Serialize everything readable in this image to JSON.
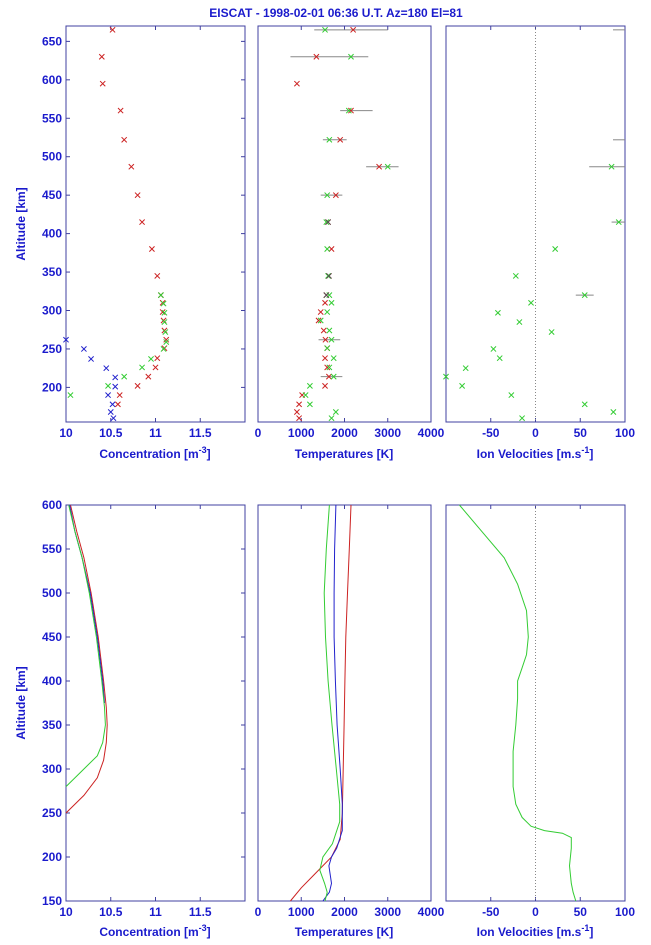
{
  "figure": {
    "title": "EISCAT  - 1998-02-01 06:36 U.T.  Az=180 El=81",
    "colors": {
      "frame": "#4040a0",
      "text": "#1a1acc",
      "red": "#cc2222",
      "green": "#33cc33",
      "blue": "#2222cc",
      "dark": "#555555",
      "grid": "#888888"
    }
  },
  "chart_data": [
    {
      "type": "scatter",
      "title": "",
      "xlabel": "Concentration [m^-3]",
      "ylabel": "Altitude [km]",
      "xlim": [
        10,
        12
      ],
      "ylim": [
        155,
        670
      ],
      "xticks": [
        "10",
        "10.5",
        "11",
        "11.5"
      ],
      "yticks": [
        "200",
        "250",
        "300",
        "350",
        "400",
        "450",
        "500",
        "550",
        "600",
        "650"
      ],
      "series": [
        {
          "color": "red",
          "points": [
            [
              10.52,
              665
            ],
            [
              10.4,
              630
            ],
            [
              10.41,
              595
            ],
            [
              10.61,
              560
            ],
            [
              10.65,
              522
            ],
            [
              10.73,
              487
            ],
            [
              10.8,
              450
            ],
            [
              10.85,
              415
            ],
            [
              10.96,
              380
            ],
            [
              11.02,
              345
            ],
            [
              11.06,
              320
            ],
            [
              11.08,
              310
            ],
            [
              11.08,
              298
            ],
            [
              11.09,
              287
            ],
            [
              11.1,
              274
            ],
            [
              11.12,
              262
            ],
            [
              11.1,
              251
            ],
            [
              11.02,
              238
            ],
            [
              11.0,
              226
            ],
            [
              10.92,
              214
            ],
            [
              10.8,
              202
            ],
            [
              10.6,
              190
            ],
            [
              10.58,
              178
            ]
          ]
        },
        {
          "color": "green",
          "points": [
            [
              11.06,
              320
            ],
            [
              11.09,
              309
            ],
            [
              11.1,
              297
            ],
            [
              11.1,
              285
            ],
            [
              11.11,
              272
            ],
            [
              11.12,
              259
            ],
            [
              11.09,
              250
            ],
            [
              10.95,
              237
            ],
            [
              10.85,
              226
            ],
            [
              10.65,
              214
            ],
            [
              10.47,
              202
            ],
            [
              10.05,
              190
            ]
          ]
        },
        {
          "color": "blue",
          "points": [
            [
              10.0,
              262
            ],
            [
              10.2,
              250
            ],
            [
              10.28,
              237
            ],
            [
              10.45,
              225
            ],
            [
              10.55,
              213
            ],
            [
              10.55,
              201
            ],
            [
              10.47,
              190
            ],
            [
              10.52,
              178
            ],
            [
              10.5,
              168
            ],
            [
              10.53,
              160
            ]
          ]
        }
      ]
    },
    {
      "type": "scatter",
      "title": "",
      "xlabel": "Temperatures [K]",
      "ylabel": "",
      "xlim": [
        0,
        4000
      ],
      "ylim": [
        155,
        670
      ],
      "xticks": [
        "0",
        "1000",
        "2000",
        "3000",
        "4000"
      ],
      "yticks": [],
      "series": [
        {
          "color": "red",
          "points": [
            [
              2200,
              665
            ],
            [
              1350,
              630
            ],
            [
              900,
              595
            ],
            [
              2150,
              560
            ],
            [
              1900,
              522
            ],
            [
              2800,
              487
            ],
            [
              1800,
              450
            ],
            [
              1620,
              415
            ],
            [
              1700,
              380
            ],
            [
              1640,
              345
            ],
            [
              1580,
              320
            ],
            [
              1550,
              310
            ],
            [
              1450,
              298
            ],
            [
              1400,
              287
            ],
            [
              1520,
              274
            ],
            [
              1560,
              262
            ],
            [
              1600,
              251
            ],
            [
              1550,
              238
            ],
            [
              1600,
              226
            ],
            [
              1640,
              214
            ],
            [
              1550,
              202
            ],
            [
              1020,
              190
            ],
            [
              950,
              178
            ],
            [
              900,
              168
            ],
            [
              950,
              160
            ]
          ]
        },
        {
          "color": "green",
          "points": [
            [
              1550,
              665
            ],
            [
              2150,
              630
            ],
            [
              2100,
              560
            ],
            [
              1650,
              522
            ],
            [
              3000,
              487
            ],
            [
              1600,
              450
            ],
            [
              1580,
              415
            ],
            [
              1600,
              380
            ],
            [
              1620,
              345
            ],
            [
              1650,
              320
            ],
            [
              1700,
              310
            ],
            [
              1600,
              298
            ],
            [
              1450,
              287
            ],
            [
              1650,
              274
            ],
            [
              1700,
              262
            ],
            [
              1600,
              251
            ],
            [
              1750,
              238
            ],
            [
              1650,
              226
            ],
            [
              1750,
              214
            ],
            [
              1200,
              202
            ],
            [
              1100,
              190
            ],
            [
              1200,
              178
            ],
            [
              1800,
              168
            ],
            [
              1700,
              160
            ]
          ]
        },
        {
          "color": "dark",
          "points": [
            [
              1620,
              415
            ],
            [
              1640,
              345
            ],
            [
              1580,
              320
            ]
          ]
        }
      ],
      "errorbars": [
        {
          "y": 665,
          "x0": 1300,
          "x1": 3000
        },
        {
          "y": 630,
          "x0": 750,
          "x1": 2550
        },
        {
          "y": 560,
          "x0": 1900,
          "x1": 2650
        },
        {
          "y": 522,
          "x0": 1500,
          "x1": 2050
        },
        {
          "y": 487,
          "x0": 2500,
          "x1": 3250
        },
        {
          "y": 450,
          "x0": 1450,
          "x1": 1950
        },
        {
          "y": 262,
          "x0": 1400,
          "x1": 1900
        },
        {
          "y": 214,
          "x0": 1450,
          "x1": 1950
        }
      ]
    },
    {
      "type": "scatter",
      "title": "",
      "xlabel": "Ion Velocities [m.s^-1]",
      "ylabel": "",
      "xlim": [
        -100,
        100
      ],
      "ylim": [
        155,
        670
      ],
      "xticks": [
        "-50",
        "0",
        "50",
        "100"
      ],
      "yticks": [],
      "series": [
        {
          "color": "green",
          "points": [
            [
              85,
              487
            ],
            [
              93,
              415
            ],
            [
              22,
              380
            ],
            [
              -22,
              345
            ],
            [
              55,
              320
            ],
            [
              -5,
              310
            ],
            [
              -42,
              297
            ],
            [
              -18,
              285
            ],
            [
              18,
              272
            ],
            [
              -47,
              250
            ],
            [
              -40,
              238
            ],
            [
              -78,
              225
            ],
            [
              -100,
              214
            ],
            [
              -82,
              202
            ],
            [
              -27,
              190
            ],
            [
              55,
              178
            ],
            [
              87,
              168
            ],
            [
              -15,
              160
            ]
          ]
        }
      ],
      "errorbars": [
        {
          "y": 487,
          "x0": 60,
          "x1": 100
        },
        {
          "y": 415,
          "x0": 85,
          "x1": 100
        },
        {
          "y": 320,
          "x0": 45,
          "x1": 65
        }
      ],
      "edge_ticks_y": [
        665,
        522
      ]
    },
    {
      "type": "line",
      "title": "",
      "xlabel": "Concentration [m^-3]",
      "ylabel": "Altitude [km]",
      "xlim": [
        10,
        12
      ],
      "ylim": [
        150,
        600
      ],
      "xticks": [
        "10",
        "10.5",
        "11",
        "11.5"
      ],
      "yticks": [
        "150",
        "200",
        "250",
        "300",
        "350",
        "400",
        "450",
        "500",
        "550",
        "600"
      ],
      "series": [
        {
          "color": "red",
          "points": [
            [
              10.05,
              600
            ],
            [
              10.12,
              570
            ],
            [
              10.2,
              540
            ],
            [
              10.28,
              500
            ],
            [
              10.36,
              450
            ],
            [
              10.42,
              400
            ],
            [
              10.45,
              370
            ],
            [
              10.46,
              350
            ],
            [
              10.45,
              330
            ],
            [
              10.42,
              310
            ],
            [
              10.35,
              290
            ],
            [
              10.2,
              270
            ],
            [
              10.0,
              250
            ]
          ]
        },
        {
          "color": "blue",
          "points": [
            [
              10.04,
              600
            ],
            [
              10.1,
              570
            ],
            [
              10.18,
              540
            ],
            [
              10.27,
              500
            ],
            [
              10.35,
              450
            ],
            [
              10.41,
              400
            ],
            [
              10.43,
              375
            ]
          ]
        },
        {
          "color": "green",
          "points": [
            [
              10.03,
              600
            ],
            [
              10.1,
              570
            ],
            [
              10.18,
              540
            ],
            [
              10.26,
              500
            ],
            [
              10.34,
              450
            ],
            [
              10.4,
              400
            ],
            [
              10.43,
              370
            ],
            [
              10.44,
              350
            ],
            [
              10.41,
              330
            ],
            [
              10.35,
              315
            ],
            [
              10.2,
              300
            ],
            [
              10.0,
              280
            ]
          ]
        }
      ]
    },
    {
      "type": "line",
      "title": "",
      "xlabel": "Temperatures [K]",
      "ylabel": "",
      "xlim": [
        0,
        4000
      ],
      "ylim": [
        150,
        600
      ],
      "xticks": [
        "0",
        "1000",
        "2000",
        "3000",
        "4000"
      ],
      "yticks": [],
      "series": [
        {
          "color": "red",
          "points": [
            [
              2150,
              600
            ],
            [
              2110,
              550
            ],
            [
              2070,
              500
            ],
            [
              2030,
              450
            ],
            [
              2010,
              400
            ],
            [
              1990,
              350
            ],
            [
              1970,
              300
            ],
            [
              1950,
              250
            ],
            [
              1900,
              220
            ],
            [
              1700,
              200
            ],
            [
              1300,
              180
            ],
            [
              1000,
              165
            ],
            [
              750,
              150
            ]
          ]
        },
        {
          "color": "blue",
          "points": [
            [
              1800,
              600
            ],
            [
              1770,
              550
            ],
            [
              1760,
              500
            ],
            [
              1760,
              450
            ],
            [
              1790,
              400
            ],
            [
              1830,
              350
            ],
            [
              1900,
              300
            ],
            [
              1950,
              260
            ],
            [
              1950,
              230
            ],
            [
              1820,
              210
            ],
            [
              1700,
              200
            ],
            [
              1640,
              190
            ],
            [
              1700,
              170
            ],
            [
              1650,
              160
            ],
            [
              1500,
              150
            ]
          ]
        },
        {
          "color": "green",
          "points": [
            [
              1650,
              600
            ],
            [
              1580,
              550
            ],
            [
              1530,
              500
            ],
            [
              1560,
              450
            ],
            [
              1620,
              400
            ],
            [
              1710,
              350
            ],
            [
              1810,
              300
            ],
            [
              1890,
              260
            ],
            [
              1890,
              240
            ],
            [
              1720,
              215
            ],
            [
              1500,
              200
            ],
            [
              1430,
              185
            ],
            [
              1540,
              170
            ],
            [
              1600,
              160
            ],
            [
              1550,
              150
            ]
          ]
        }
      ]
    },
    {
      "type": "line",
      "title": "",
      "xlabel": "Ion Velocities [m.s^-1]",
      "ylabel": "",
      "xlim": [
        -100,
        100
      ],
      "ylim": [
        150,
        600
      ],
      "xticks": [
        "-50",
        "0",
        "50",
        "100"
      ],
      "yticks": [],
      "series": [
        {
          "color": "green",
          "points": [
            [
              -85,
              600
            ],
            [
              -60,
              570
            ],
            [
              -35,
              540
            ],
            [
              -20,
              510
            ],
            [
              -10,
              480
            ],
            [
              -8,
              450
            ],
            [
              -10,
              430
            ],
            [
              -15,
              415
            ],
            [
              -20,
              400
            ],
            [
              -20,
              380
            ],
            [
              -22,
              350
            ],
            [
              -25,
              320
            ],
            [
              -25,
              280
            ],
            [
              -22,
              260
            ],
            [
              -15,
              245
            ],
            [
              -5,
              235
            ],
            [
              10,
              230
            ],
            [
              30,
              227
            ],
            [
              40,
              222
            ],
            [
              40,
              210
            ],
            [
              38,
              190
            ],
            [
              40,
              170
            ],
            [
              42,
              160
            ],
            [
              45,
              150
            ]
          ]
        }
      ]
    }
  ]
}
